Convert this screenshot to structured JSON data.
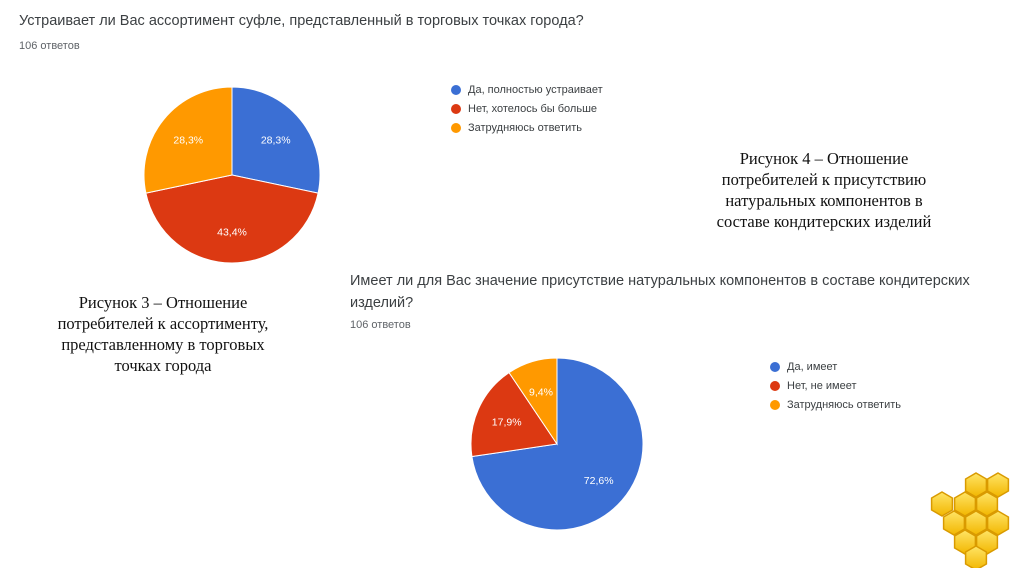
{
  "figure3": {
    "question": "Устраивает ли Вас ассортимент суфле, представленный в торговых точках города?",
    "responses": "106 ответов",
    "caption": [
      "Рисунок 3 – Отношение",
      "потребителей к ассортименту,",
      "представленному в торговых",
      "точках города"
    ]
  },
  "figure4": {
    "question_line1": "Имеет ли для Вас значение присутствие натуральных компонентов в составе кондитерских",
    "question_line2": "изделий?",
    "responses": "106 ответов",
    "caption": [
      "Рисунок 4 – Отношение",
      "потребителей к присутствию",
      "натуральных компонентов в",
      "составе кондитерских изделий"
    ]
  },
  "chart_data": [
    {
      "type": "pie",
      "title": "Устраивает ли Вас ассортимент суфле, представленный в торговых точках города?",
      "slices": [
        {
          "label": "Да, полностью устраивает",
          "value": 28.3,
          "value_label": "28,3%",
          "color": "#3b6fd4"
        },
        {
          "label": "Нет, хотелось бы больше",
          "value": 43.4,
          "value_label": "43,4%",
          "color": "#dc3912"
        },
        {
          "label": "Затрудняюсь ответить",
          "value": 28.3,
          "value_label": "28,3%",
          "color": "#ff9900"
        }
      ],
      "start_angle_deg": 90,
      "direction": "clockwise"
    },
    {
      "type": "pie",
      "title": "Имеет ли для Вас значение присутствие натуральных компонентов в составе кондитерских изделий?",
      "slices": [
        {
          "label": "Да, имеет",
          "value": 72.6,
          "value_label": "72,6%",
          "color": "#3b6fd4"
        },
        {
          "label": "Нет, не имеет",
          "value": 17.9,
          "value_label": "17,9%",
          "color": "#dc3912"
        },
        {
          "label": "Затрудняюсь ответить",
          "value": 9.4,
          "value_label": "9,4%",
          "color": "#ff9900"
        }
      ],
      "start_angle_deg": 90,
      "direction": "clockwise"
    }
  ]
}
